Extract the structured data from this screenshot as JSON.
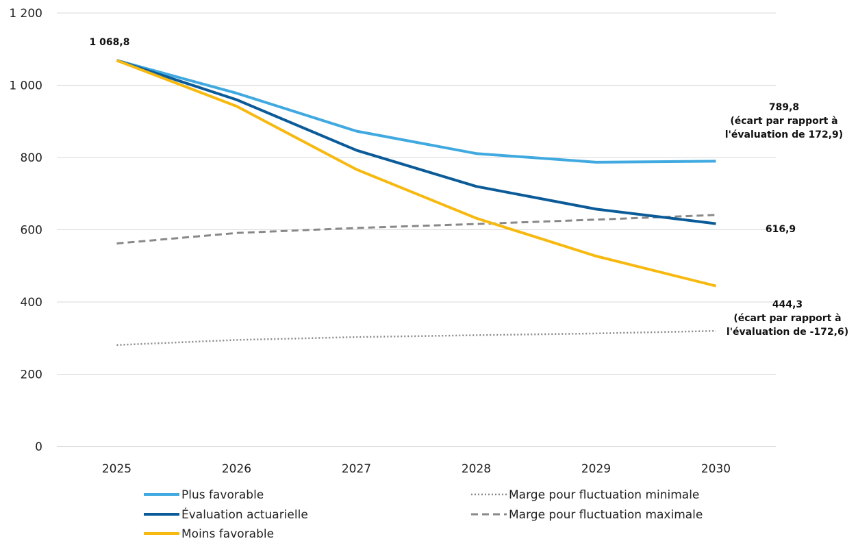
{
  "chart_data": {
    "type": "line",
    "x": [
      "2025",
      "2026",
      "2027",
      "2028",
      "2029",
      "2030"
    ],
    "ylim": [
      0,
      1200
    ],
    "yticks": [
      0,
      200,
      400,
      600,
      800,
      1000,
      1200
    ],
    "ytick_labels": [
      "0",
      "200",
      "400",
      "600",
      "800",
      "1 000",
      "1 200"
    ],
    "grid": true,
    "legend_position": "bottom",
    "series": [
      {
        "name": "Plus favorable",
        "values": [
          1068.8,
          978,
          873,
          811,
          787,
          789.8
        ],
        "color": "#3fa9e0",
        "style": "solid"
      },
      {
        "name": "Évaluation actuarielle",
        "values": [
          1068.8,
          960,
          820,
          720,
          657,
          616.9
        ],
        "color": "#0b5b99",
        "style": "solid"
      },
      {
        "name": "Moins favorable",
        "values": [
          1068.8,
          942,
          767,
          632,
          527,
          444.3
        ],
        "color": "#f7b90f",
        "style": "solid"
      },
      {
        "name": "Marge pour fluctuation minimale",
        "values": [
          281,
          295,
          303,
          308,
          313,
          320
        ],
        "color": "#888888",
        "style": "dotted"
      },
      {
        "name": "Marge pour fluctuation maximale",
        "values": [
          562,
          591,
          605,
          616,
          628,
          641
        ],
        "color": "#888888",
        "style": "dashed"
      }
    ],
    "annotations": [
      {
        "lines": [
          "1 068,8"
        ],
        "x": "2025",
        "y": 1068.8
      },
      {
        "lines": [
          "789,8",
          "(écart par rapport à",
          "l'évaluation de 172,9)"
        ],
        "x": "2030",
        "y": 789.8
      },
      {
        "lines": [
          "616,9"
        ],
        "x": "2030",
        "y": 616.9
      },
      {
        "lines": [
          "444,3",
          "(écart par rapport à",
          "l'évaluation de -172,6)"
        ],
        "x": "2030",
        "y": 444.3
      }
    ]
  }
}
